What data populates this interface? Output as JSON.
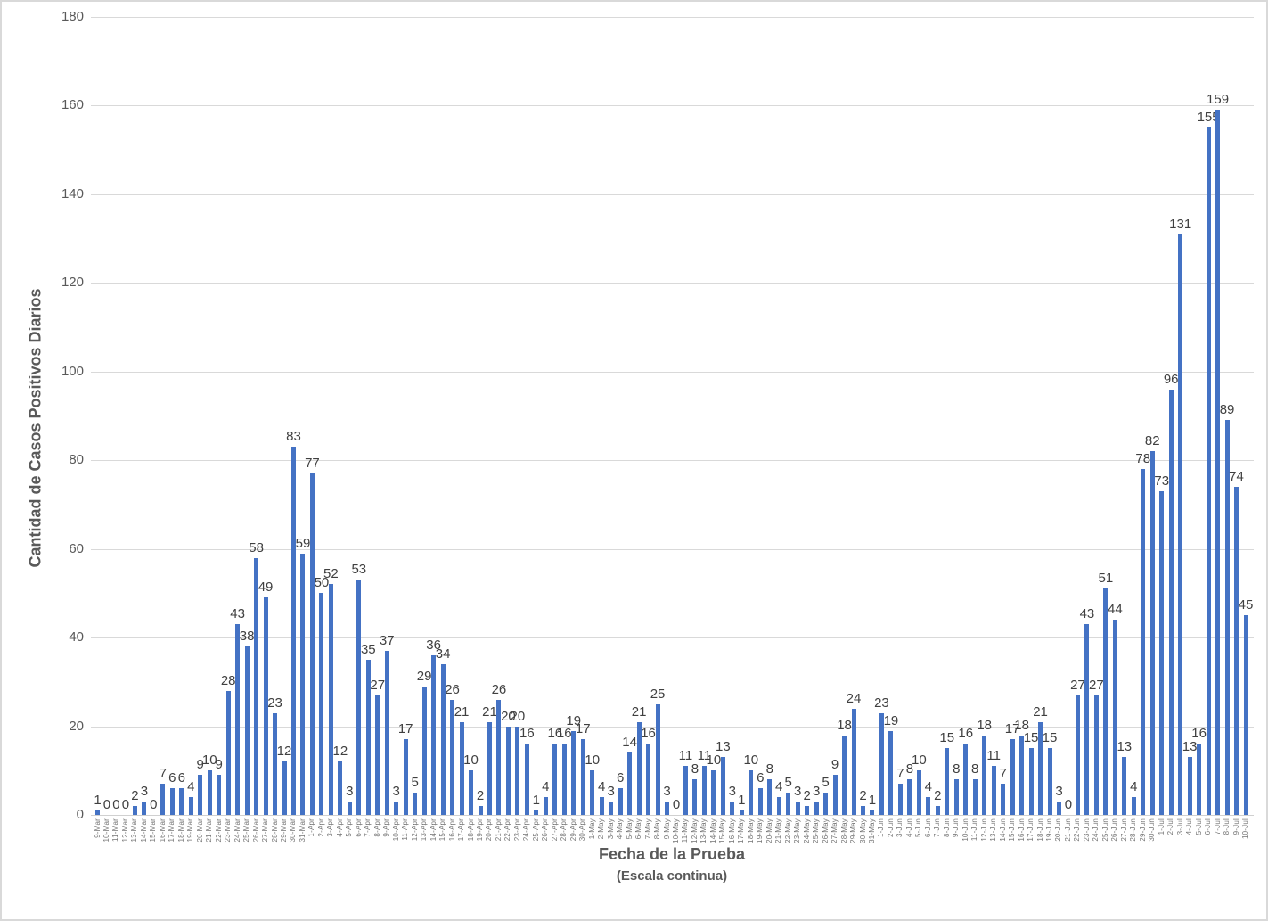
{
  "figure": {
    "background": "#FFFFFF",
    "border_color": "#D9D9D9",
    "bar_color": "#4472C4",
    "gridline_color": "#D9D9D9",
    "axis_line_color": "#D0D0D0",
    "value_label_color": "#404040",
    "tick_label_color": "#595959",
    "date_label_color": "#757575",
    "axis_title_color": "#595959"
  },
  "chart_data": {
    "type": "bar",
    "title": "",
    "xlabel": "Fecha de la Prueba",
    "xlabel_sub": "(Escala continua)",
    "ylabel": "Cantidad de Casos Positivos Diarios",
    "ylim": [
      0,
      180
    ],
    "yticks": [
      0,
      20,
      40,
      60,
      80,
      100,
      120,
      140,
      160,
      180
    ],
    "grid": true,
    "legend": false,
    "data_labels": true,
    "categories": [
      "9-Mar",
      "10-Mar",
      "11-Mar",
      "12-Mar",
      "13-Mar",
      "14-Mar",
      "15-Mar",
      "16-Mar",
      "17-Mar",
      "18-Mar",
      "19-Mar",
      "20-Mar",
      "21-Mar",
      "22-Mar",
      "23-Mar",
      "24-Mar",
      "25-Mar",
      "26-Mar",
      "27-Mar",
      "28-Mar",
      "29-Mar",
      "30-Mar",
      "31-Mar",
      "1-Apr",
      "2-Apr",
      "3-Apr",
      "4-Apr",
      "5-Apr",
      "6-Apr",
      "7-Apr",
      "8-Apr",
      "9-Apr",
      "10-Apr",
      "11-Apr",
      "12-Apr",
      "13-Apr",
      "14-Apr",
      "15-Apr",
      "16-Apr",
      "17-Apr",
      "18-Apr",
      "19-Apr",
      "20-Apr",
      "21-Apr",
      "22-Apr",
      "23-Apr",
      "24-Apr",
      "25-Apr",
      "26-Apr",
      "27-Apr",
      "28-Apr",
      "29-Apr",
      "30-Apr",
      "1-May",
      "2-May",
      "3-May",
      "4-May",
      "5-May",
      "6-May",
      "7-May",
      "8-May",
      "9-May",
      "10-May",
      "11-May",
      "12-May",
      "13-May",
      "14-May",
      "15-May",
      "16-May",
      "17-May",
      "18-May",
      "19-May",
      "20-May",
      "21-May",
      "22-May",
      "23-May",
      "24-May",
      "25-May",
      "26-May",
      "27-May",
      "28-May",
      "29-May",
      "30-May",
      "31-May",
      "1-Jun",
      "2-Jun",
      "3-Jun",
      "4-Jun",
      "5-Jun",
      "6-Jun",
      "7-Jun",
      "8-Jun",
      "9-Jun",
      "10-Jun",
      "11-Jun",
      "12-Jun",
      "13-Jun",
      "14-Jun",
      "15-Jun",
      "16-Jun",
      "17-Jun",
      "18-Jun",
      "19-Jun",
      "20-Jun",
      "21-Jun",
      "22-Jun",
      "23-Jun",
      "24-Jun",
      "25-Jun",
      "26-Jun",
      "27-Jun",
      "28-Jun",
      "29-Jun",
      "30-Jun",
      "1-Jul",
      "2-Jul",
      "3-Jul",
      "4-Jul",
      "5-Jul",
      "6-Jul",
      "7-Jul",
      "8-Jul",
      "9-Jul",
      "10-Jul"
    ],
    "values": [
      1,
      0,
      0,
      0,
      2,
      3,
      0,
      7,
      6,
      6,
      4,
      9,
      10,
      9,
      28,
      43,
      38,
      58,
      49,
      23,
      12,
      83,
      59,
      77,
      50,
      52,
      12,
      3,
      53,
      35,
      27,
      37,
      3,
      17,
      5,
      29,
      36,
      34,
      26,
      21,
      10,
      2,
      21,
      26,
      20,
      20,
      16,
      1,
      4,
      16,
      16,
      19,
      17,
      10,
      4,
      3,
      6,
      14,
      21,
      16,
      25,
      3,
      0,
      11,
      8,
      11,
      10,
      13,
      3,
      1,
      10,
      6,
      8,
      4,
      5,
      3,
      2,
      3,
      5,
      9,
      18,
      24,
      2,
      1,
      23,
      19,
      7,
      8,
      10,
      4,
      2,
      15,
      8,
      16,
      8,
      18,
      11,
      7,
      17,
      18,
      15,
      21,
      15,
      3,
      0,
      27,
      43,
      27,
      51,
      44,
      13,
      4,
      78,
      82,
      73,
      96,
      131,
      13,
      16,
      155,
      159,
      89,
      74,
      45
    ]
  }
}
